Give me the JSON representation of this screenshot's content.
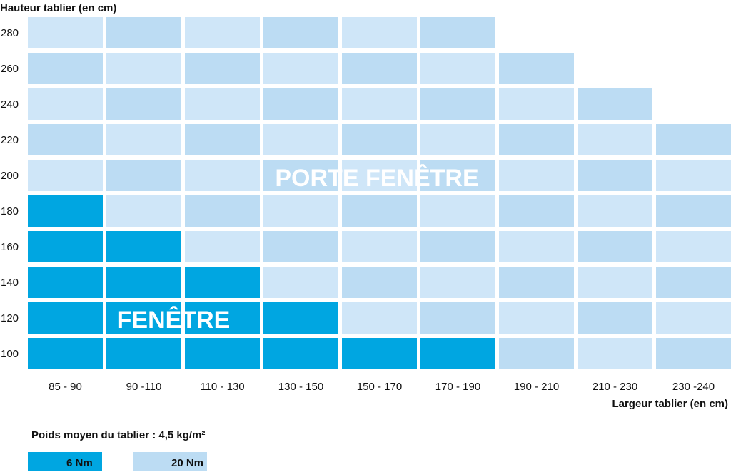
{
  "chart_data": {
    "type": "heatmap",
    "title": "",
    "ylabel": "Hauteur tablier (en cm)",
    "xlabel": "Largeur tablier (en cm)",
    "x_categories": [
      "85 - 90",
      "90 -110",
      "110 - 130",
      "130 - 150",
      "150 - 170",
      "170 - 190",
      "190 - 210",
      "210 - 230",
      "230 -240"
    ],
    "y_categories": [
      "100",
      "120",
      "140",
      "160",
      "180",
      "200",
      "220",
      "240",
      "260",
      "280"
    ],
    "max_height_index_per_width": [
      9,
      9,
      9,
      9,
      9,
      9,
      8,
      7,
      6
    ],
    "six_nm_max_height_index_per_width": [
      4,
      3,
      2,
      1,
      0,
      0,
      -1,
      -1,
      -1
    ],
    "zone_labels": {
      "fenetre": "FENÊTRE",
      "porte_fenetre": "PORTE FENÊTRE"
    },
    "legend": {
      "title": "Poids moyen du tablier : 4,5 kg/m²",
      "items": [
        {
          "label": "6 Nm",
          "color": "#00a6e1"
        },
        {
          "label": "20 Nm",
          "color": "#bcdcf3"
        }
      ]
    },
    "colors": {
      "six_nm": "#00a6e1",
      "twenty_nm": "#bcdcf3",
      "twenty_nm_light": "#cfe6f8"
    }
  }
}
